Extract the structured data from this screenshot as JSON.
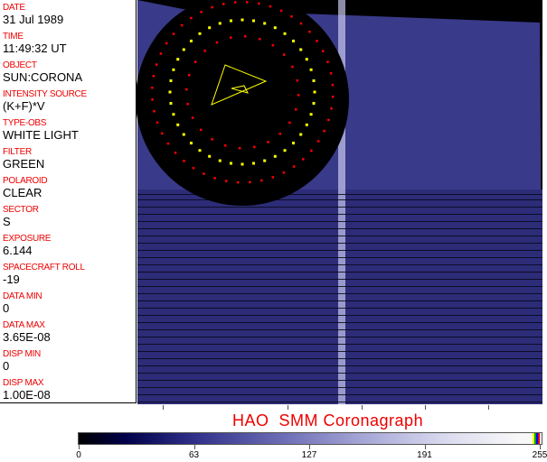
{
  "metadata": [
    {
      "label": "DATE",
      "value": "31 Jul 1989"
    },
    {
      "label": "TIME",
      "value": "11:49:32 UT"
    },
    {
      "label": "OBJECT",
      "value": "SUN:CORONA"
    },
    {
      "label": "INTENSITY SOURCE",
      "value": "(K+F)*V"
    },
    {
      "label": "TYPE-OBS",
      "value": "WHITE LIGHT"
    },
    {
      "label": "FILTER",
      "value": "GREEN"
    },
    {
      "label": "POLAROID",
      "value": "CLEAR"
    },
    {
      "label": "SECTOR",
      "value": "S"
    },
    {
      "label": "EXPOSURE",
      "value": "6.144"
    },
    {
      "label": "SPACECRAFT ROLL",
      "value": "-19"
    },
    {
      "label": "DATA MIN",
      "value": "0"
    },
    {
      "label": "DATA MAX",
      "value": "3.65E-08"
    },
    {
      "label": "DISP MIN",
      "value": "0"
    },
    {
      "label": "DISP MAX",
      "value": "1.00E-08"
    }
  ],
  "title": "HAO  SMM Coronagraph",
  "colorbar": {
    "ticks": [
      "0",
      "63",
      "127",
      "191",
      "255"
    ]
  },
  "colors": {
    "label": "#e00000",
    "background": "#000000",
    "occulter_marks_yellow": "#ffff00",
    "occulter_marks_red": "#ff0000"
  }
}
